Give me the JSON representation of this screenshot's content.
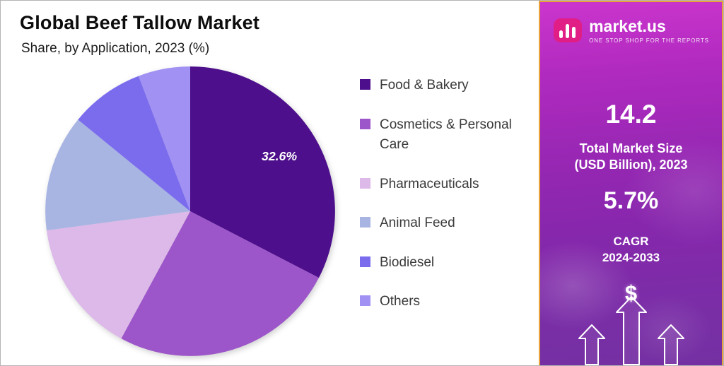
{
  "title": "Global Beef Tallow Market",
  "subtitle": "Share, by Application, 2023 (%)",
  "chart_data": {
    "type": "pie",
    "title": "Global Beef Tallow Market",
    "subtitle": "Share, by Application, 2023 (%)",
    "unit": "%",
    "start_angle_deg": 0,
    "direction": "clockwise",
    "legend_position": "right",
    "labels": [
      "Food & Bakery",
      "Cosmetics & Personal Care",
      "Pharmaceuticals",
      "Animal Feed",
      "Biodiesel",
      "Others"
    ],
    "values": [
      32.6,
      25.3,
      15.0,
      13.0,
      8.3,
      5.8
    ],
    "colors": [
      "#4d0f8b",
      "#9c56c9",
      "#dcb9e9",
      "#a8b5e2",
      "#7b6cee",
      "#a091f2"
    ],
    "data_labels": [
      "32.6%",
      "",
      "",
      "",
      "",
      ""
    ]
  },
  "side_panel": {
    "brand": {
      "name": "market.us",
      "tagline": "ONE STOP SHOP FOR THE REPORTS",
      "logo": "market-us-bar-chart-logo"
    },
    "stats": [
      {
        "value": "14.2",
        "label_line1": "Total Market Size",
        "label_line2": "(USD Billion), 2023"
      },
      {
        "value": "5.7%",
        "label_line1": "CAGR",
        "label_line2": "2024-2033"
      }
    ],
    "dollar_icon": "$",
    "accent_colors": {
      "panel_top": "#cb35cd",
      "panel_bottom": "#7430a2",
      "border": "#e8a33b",
      "logo_pink": "#e01e86"
    }
  }
}
